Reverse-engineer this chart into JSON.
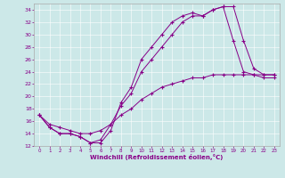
{
  "xlabel": "Windchill (Refroidissement éolien,°C)",
  "xlim": [
    -0.5,
    23.5
  ],
  "ylim": [
    12,
    35
  ],
  "xticks": [
    0,
    1,
    2,
    3,
    4,
    5,
    6,
    7,
    8,
    9,
    10,
    11,
    12,
    13,
    14,
    15,
    16,
    17,
    18,
    19,
    20,
    21,
    22,
    23
  ],
  "yticks": [
    12,
    14,
    16,
    18,
    20,
    22,
    24,
    26,
    28,
    30,
    32,
    34
  ],
  "bg_color": "#cce8e8",
  "line_color": "#880088",
  "line1_x": [
    0,
    1,
    2,
    3,
    4,
    5,
    6,
    7,
    8,
    9,
    10,
    11,
    12,
    13,
    14,
    15,
    16,
    17,
    18,
    19,
    20,
    21,
    22,
    23
  ],
  "line1_y": [
    17,
    15,
    14,
    14,
    13.5,
    12.5,
    12.5,
    14.5,
    19,
    21.5,
    26,
    28,
    30,
    32,
    33,
    33.5,
    33,
    34,
    34.5,
    29,
    24,
    23.5,
    23,
    23
  ],
  "line2_x": [
    0,
    1,
    2,
    3,
    4,
    5,
    6,
    7,
    8,
    9,
    10,
    11,
    12,
    13,
    14,
    15,
    16,
    17,
    18,
    19,
    20,
    21,
    22,
    23
  ],
  "line2_y": [
    17,
    15,
    14,
    14,
    13.5,
    12.5,
    13,
    15.5,
    18.5,
    20.5,
    24,
    26,
    28,
    30,
    32,
    33,
    33,
    34,
    34.5,
    34.5,
    29,
    24.5,
    23.5,
    23.5
  ],
  "line3_x": [
    0,
    1,
    2,
    3,
    4,
    5,
    6,
    7,
    8,
    9,
    10,
    11,
    12,
    13,
    14,
    15,
    16,
    17,
    18,
    19,
    20,
    21,
    22,
    23
  ],
  "line3_y": [
    17,
    15.5,
    15,
    14.5,
    14,
    14,
    14.5,
    15.5,
    17,
    18,
    19.5,
    20.5,
    21.5,
    22,
    22.5,
    23,
    23,
    23.5,
    23.5,
    23.5,
    23.5,
    23.5,
    23.5,
    23.5
  ]
}
